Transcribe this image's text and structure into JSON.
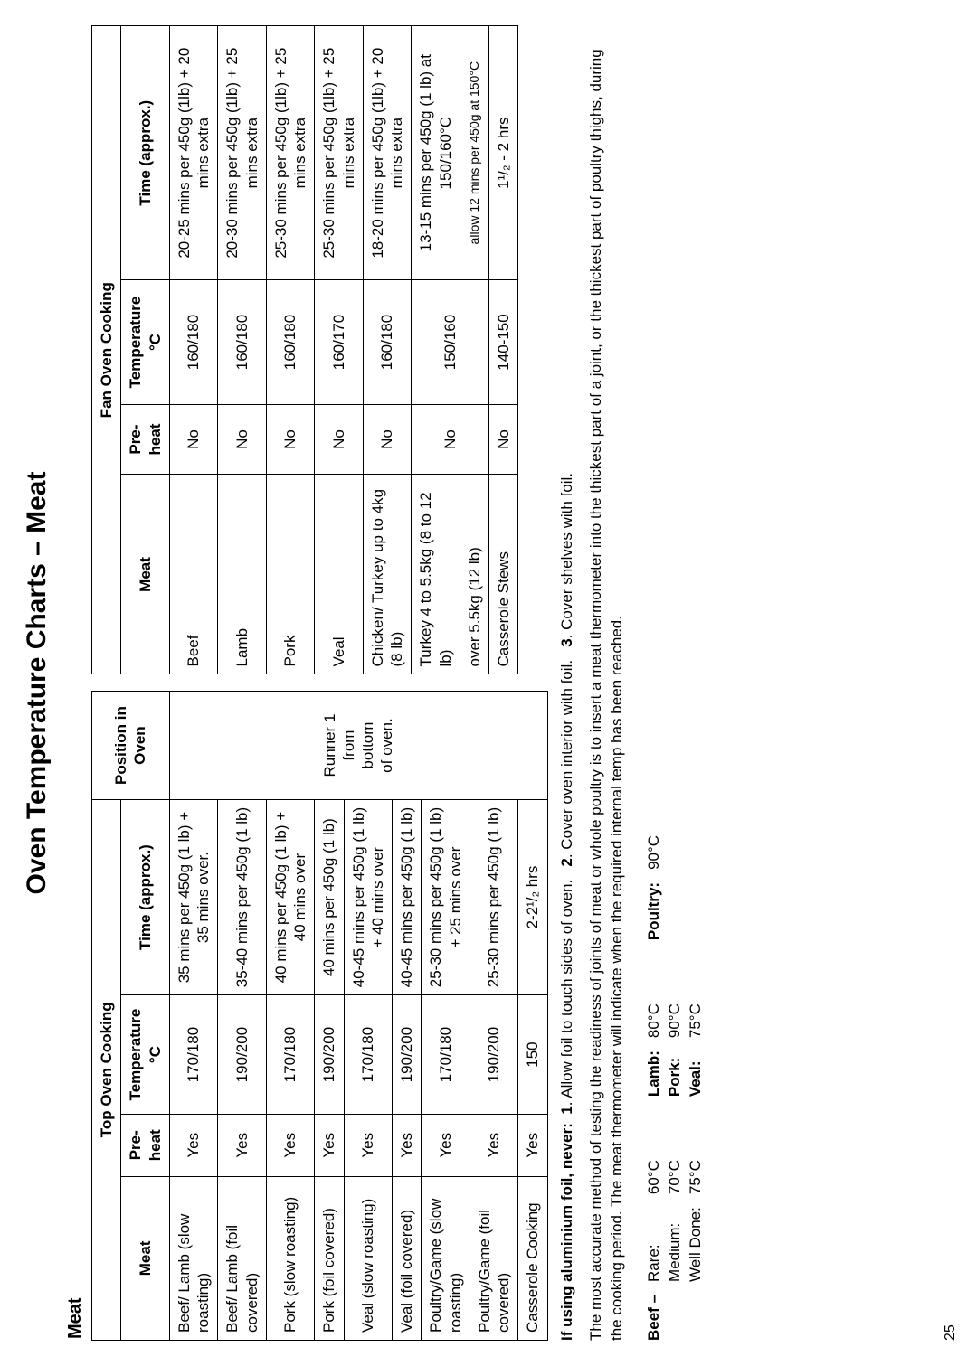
{
  "page_number": "25",
  "title": "Oven Temperature Charts – Meat",
  "top_oven": {
    "heading": "Top Oven Cooking",
    "section_label": "Meat",
    "columns": [
      "Meat",
      "Pre-heat",
      "Temperature °C",
      "Time (approx.)",
      "Position in Oven"
    ],
    "position_cell": [
      "Runner 1",
      "from",
      "bottom",
      "of oven."
    ],
    "rows": [
      {
        "meat": "Beef/ Lamb (slow roasting)",
        "preheat": "Yes",
        "temp": "170/180",
        "time": "35 mins per 450g (1 lb) + 35 mins over."
      },
      {
        "meat": "Beef/ Lamb (foil covered)",
        "preheat": "Yes",
        "temp": "190/200",
        "time": "35-40 mins per 450g (1 lb)"
      },
      {
        "meat": "Pork (slow roasting)",
        "preheat": "Yes",
        "temp": "170/180",
        "time": "40 mins per 450g (1 lb) + 40 mins over"
      },
      {
        "meat": "Pork (foil covered)",
        "preheat": "Yes",
        "temp": "190/200",
        "time": "40 mins per 450g (1 lb)"
      },
      {
        "meat": "Veal (slow roasting)",
        "preheat": "Yes",
        "temp": "170/180",
        "time": "40-45 mins per 450g (1 lb) + 40 mins over"
      },
      {
        "meat": "Veal (foil covered)",
        "preheat": "Yes",
        "temp": "190/200",
        "time": "40-45 mins per 450g (1 lb)"
      },
      {
        "meat": "Poultry/Game (slow roasting)",
        "preheat": "Yes",
        "temp": "170/180",
        "time": "25-30 mins per 450g (1 lb) + 25 mins over"
      },
      {
        "meat": "Poultry/Game (foil covered)",
        "preheat": "Yes",
        "temp": "190/200",
        "time": "25-30 mins per 450g (1 lb)"
      },
      {
        "meat": "Casserole Cooking",
        "preheat": "Yes",
        "temp": "150",
        "time": "2-2¹/₂ hrs"
      }
    ]
  },
  "fan_oven": {
    "heading": "Fan Oven Cooking",
    "columns": [
      "Meat",
      "Pre-heat",
      "Temperature °C",
      "Time (approx.)"
    ],
    "rows": [
      {
        "meat": "Beef",
        "preheat": "No",
        "temp": "160/180",
        "time": "20-25 mins per 450g (1lb) + 20 mins extra"
      },
      {
        "meat": "Lamb",
        "preheat": "No",
        "temp": "160/180",
        "time": "20-30 mins per 450g (1lb) + 25 mins extra"
      },
      {
        "meat": "Pork",
        "preheat": "No",
        "temp": "160/180",
        "time": "25-30 mins per 450g (1lb) + 25 mins extra"
      },
      {
        "meat": "Veal",
        "preheat": "No",
        "temp": "160/170",
        "time": "25-30 mins per 450g (1lb) + 25 mins extra"
      },
      {
        "meat": "Chicken/ Turkey up to 4kg (8 lb)",
        "preheat": "No",
        "temp": "160/180",
        "time": "18-20 mins per 450g (1lb) + 20 mins extra"
      },
      {
        "meat": "Turkey 4 to 5.5kg (8 to 12 lb)",
        "preheat": "No",
        "preheat_rowspan": 2,
        "temp": "150/160",
        "temp_rowspan": 2,
        "time": "13-15 mins per 450g (1 lb) at 150/160°C"
      },
      {
        "meat": "over 5.5kg (12 lb)",
        "time": "allow 12 mins per 450g at 150°C",
        "time_small": true
      },
      {
        "meat": "Casserole Stews",
        "preheat": "No",
        "temp": "140-150",
        "time": "1¹/₂ - 2 hrs"
      }
    ]
  },
  "foil_note": {
    "lead": "If using aluminium foil, never:",
    "step1_num": "1",
    "step1": ". Allow foil to touch sides of oven.",
    "step2_num": "2",
    "step2": ". Cover oven interior with foil.",
    "step3_num": "3",
    "step3": ". Cover shelves with foil."
  },
  "accuracy_note": "The most accurate method of testing the readiness of joints of meat or whole poultry is to insert a meat thermometer into the thickest part of a joint, or the thickest part of poultry thighs, during the cooking period. The meat thermometer will indicate when the required internal temp has been reached.",
  "internal_temps": {
    "beef_label": "Beef –",
    "beef": [
      {
        "name": "Rare:",
        "temp": "60°C"
      },
      {
        "name": "Medium:",
        "temp": "70°C"
      },
      {
        "name": "Well Done:",
        "temp": "75°C"
      }
    ],
    "others": [
      {
        "name": "Lamb:",
        "temp": "80°C"
      },
      {
        "name": "Pork:",
        "temp": "90°C"
      },
      {
        "name": "Veal:",
        "temp": "75°C"
      }
    ],
    "poultry_label": "Poultry:",
    "poultry_temp": "90°C"
  }
}
